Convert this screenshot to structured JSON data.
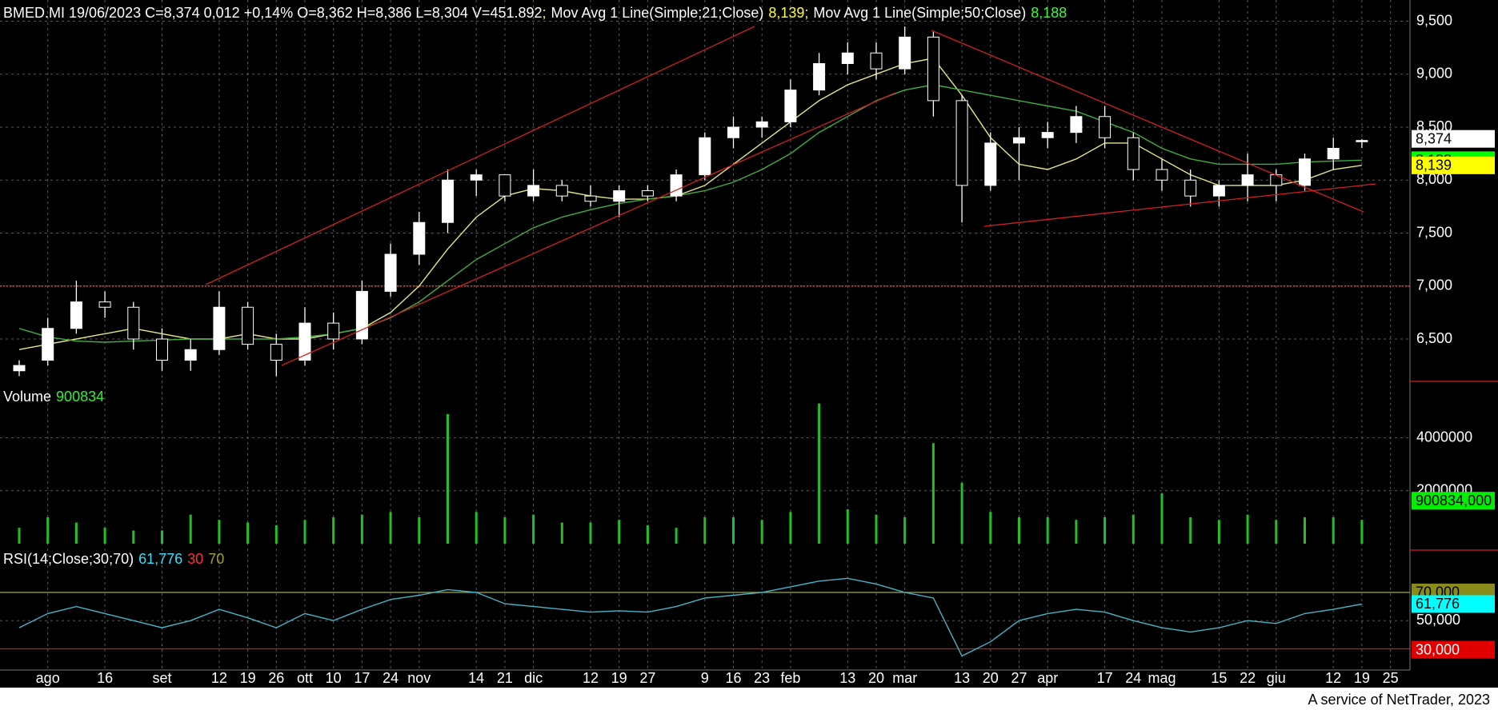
{
  "chart_data": [
    {
      "type": "candlestick",
      "title": "BMED.MI 19/06/2023 C=8,374 0,012 +0,14% O=8,362 H=8,386 L=8,304 V=451.892",
      "legend_separator": ";",
      "open": [
        6.2,
        6.3,
        6.6,
        6.85,
        6.8,
        6.5,
        6.3,
        6.4,
        6.8,
        6.45,
        6.3,
        6.65,
        6.5,
        6.95,
        7.3,
        7.6,
        8.0,
        8.05,
        7.85,
        7.95,
        7.85,
        7.8,
        7.9,
        7.85,
        8.05,
        8.4,
        8.5,
        8.55,
        8.85,
        9.1,
        9.2,
        9.05,
        9.35,
        8.75,
        7.95,
        8.35,
        8.4,
        8.45,
        8.6,
        8.4,
        8.1,
        8.0,
        7.85,
        7.95,
        8.05,
        7.95,
        8.2,
        8.362,
        null
      ],
      "high": [
        6.3,
        6.7,
        7.05,
        6.95,
        6.85,
        6.6,
        6.5,
        6.95,
        6.85,
        6.55,
        6.8,
        6.75,
        7.05,
        7.4,
        7.7,
        8.1,
        8.1,
        8.05,
        8.1,
        8.0,
        7.95,
        7.95,
        7.95,
        8.1,
        8.45,
        8.6,
        8.6,
        8.95,
        9.2,
        9.3,
        9.3,
        9.45,
        9.4,
        8.8,
        8.45,
        8.5,
        8.55,
        8.7,
        8.7,
        8.45,
        8.2,
        8.1,
        8.0,
        8.25,
        8.1,
        8.25,
        8.4,
        8.386,
        null
      ],
      "low": [
        6.15,
        6.25,
        6.55,
        6.7,
        6.4,
        6.2,
        6.2,
        6.35,
        6.4,
        6.15,
        6.25,
        6.4,
        6.45,
        6.9,
        7.2,
        7.5,
        7.85,
        7.8,
        7.8,
        7.8,
        7.75,
        7.65,
        7.8,
        7.8,
        8.0,
        8.3,
        8.4,
        8.5,
        8.8,
        9.0,
        8.95,
        9.0,
        8.6,
        7.6,
        7.9,
        8.0,
        8.3,
        8.35,
        8.3,
        8.0,
        7.9,
        7.75,
        7.75,
        7.8,
        7.8,
        7.9,
        8.1,
        8.304,
        null
      ],
      "close": [
        6.25,
        6.6,
        6.85,
        6.8,
        6.5,
        6.3,
        6.4,
        6.8,
        6.45,
        6.3,
        6.65,
        6.5,
        6.95,
        7.3,
        7.6,
        8.0,
        8.05,
        7.85,
        7.95,
        7.85,
        7.8,
        7.9,
        7.85,
        8.05,
        8.4,
        8.5,
        8.55,
        8.85,
        9.1,
        9.2,
        9.05,
        9.35,
        8.75,
        7.95,
        8.35,
        8.4,
        8.45,
        8.6,
        8.4,
        8.1,
        8.0,
        7.85,
        7.95,
        8.05,
        7.95,
        8.2,
        8.3,
        8.374,
        null
      ],
      "up_color": "#ffffff",
      "down_color": "#000000",
      "outline_color": "#ffffff",
      "last_value_label": "8,374",
      "box_color": "#ffffff",
      "series": [
        {
          "name": "Mov Avg 1 Line(Simple;21;Close)",
          "color": "#e6e68a",
          "legend_value": "8,139",
          "legend_color": "#ffff33",
          "box_color": "#ffff00",
          "values": [
            6.4,
            6.45,
            6.5,
            6.55,
            6.6,
            6.55,
            6.5,
            6.5,
            6.55,
            6.5,
            6.5,
            6.55,
            6.6,
            6.75,
            7.0,
            7.35,
            7.65,
            7.85,
            7.92,
            7.9,
            7.85,
            7.82,
            7.82,
            7.85,
            7.95,
            8.15,
            8.35,
            8.55,
            8.75,
            8.9,
            9.0,
            9.1,
            9.15,
            8.8,
            8.4,
            8.15,
            8.1,
            8.2,
            8.35,
            8.35,
            8.2,
            8.05,
            7.95,
            7.95,
            7.95,
            8.0,
            8.1,
            8.139,
            null
          ]
        },
        {
          "name": "Mov Avg 1 Line(Simple;50;Close)",
          "color": "#3fae3f",
          "legend_value": "8,188",
          "legend_color": "#33ff33",
          "box_color": "#00ff00",
          "values": [
            6.6,
            6.52,
            6.48,
            6.47,
            6.48,
            6.49,
            6.5,
            6.5,
            6.5,
            6.5,
            6.52,
            6.55,
            6.6,
            6.7,
            6.85,
            7.05,
            7.25,
            7.4,
            7.55,
            7.65,
            7.72,
            7.78,
            7.82,
            7.85,
            7.9,
            7.98,
            8.1,
            8.25,
            8.45,
            8.6,
            8.75,
            8.85,
            8.9,
            8.85,
            8.8,
            8.75,
            8.7,
            8.65,
            8.55,
            8.45,
            8.3,
            8.2,
            8.15,
            8.15,
            8.15,
            8.17,
            8.18,
            8.188,
            null
          ]
        }
      ],
      "hlines": [
        {
          "value": 7,
          "color": "#ff3030"
        }
      ],
      "ylim": [
        6.1,
        9.7
      ],
      "yticks": [
        {
          "value": 6.5,
          "label": "6,500"
        },
        {
          "value": 7,
          "label": "7,000"
        },
        {
          "value": 7.5,
          "label": "7,500"
        },
        {
          "value": 8,
          "label": "8,000"
        },
        {
          "value": 8.5,
          "label": "8,500"
        },
        {
          "value": 9,
          "label": "9,000"
        },
        {
          "value": 9.5,
          "label": "9,500"
        }
      ],
      "grid": true
    },
    {
      "type": "bar",
      "title": "Volume",
      "color": "#22c022",
      "legend_color": "#33ee33",
      "values": [
        600000,
        1000000,
        800000,
        600000,
        500000,
        500000,
        1100000,
        900000,
        800000,
        700000,
        900000,
        1000000,
        1100000,
        1200000,
        1000000,
        4900000,
        1200000,
        1000000,
        1100000,
        800000,
        800000,
        900000,
        700000,
        600000,
        1000000,
        1000000,
        900000,
        1200000,
        5300000,
        1300000,
        1100000,
        1000000,
        3800000,
        2300000,
        1200000,
        1000000,
        1000000,
        900000,
        1000000,
        1100000,
        1900000,
        1000000,
        900000,
        1100000,
        900000,
        1000000,
        1000000,
        900834,
        null
      ],
      "last_value_label": "900834,000",
      "box_color": "#00ee00",
      "ylim": [
        0,
        5800000
      ],
      "yticks": [
        2000000,
        4000000
      ],
      "grid": true
    },
    {
      "type": "line",
      "title": "RSI(14;Close;30;70)",
      "color": "#46b4c8",
      "categories": [
        null,
        "ago",
        null,
        "16",
        null,
        "set",
        null,
        "12",
        "19",
        "26",
        "ott",
        "10",
        "17",
        "24",
        "nov",
        null,
        "14",
        "21",
        "dic",
        null,
        "12",
        "19",
        "27",
        null,
        "9",
        "16",
        "23",
        "feb",
        null,
        "13",
        "20",
        "mar",
        null,
        "13",
        "20",
        "27",
        "apr",
        null,
        "17",
        "24",
        "mag",
        null,
        "15",
        "22",
        "giu",
        null,
        "12",
        "19",
        "25"
      ],
      "values": [
        45,
        55,
        60,
        55,
        50,
        45,
        50,
        58,
        52,
        45,
        55,
        50,
        58,
        65,
        68,
        72,
        70,
        62,
        60,
        58,
        56,
        57,
        56,
        60,
        66,
        68,
        70,
        74,
        78,
        80,
        76,
        70,
        66,
        25,
        35,
        50,
        55,
        58,
        56,
        50,
        45,
        42,
        45,
        50,
        48,
        55,
        58,
        61.776,
        null
      ],
      "legend_value_label": "61,776",
      "legend_color": "#33e0ff",
      "box_color": "#00ffff",
      "levels": [
        {
          "value": 30,
          "label": "30,000",
          "color": "#d01818",
          "legend_color": "#ff3030",
          "box_color": "#e00000",
          "box_text_color": "#ffffff"
        },
        {
          "value": 70,
          "label": "70,000",
          "color": "#8c9a50",
          "legend_color": "#a0a030",
          "box_color": "#8b8b1a",
          "box_text_color": "#000000"
        }
      ],
      "ylim": [
        15,
        100
      ],
      "yticks": [
        {
          "value": 50,
          "label": "50,000"
        }
      ],
      "grid": true
    }
  ],
  "footer": "A service of NetTrader, 2023"
}
